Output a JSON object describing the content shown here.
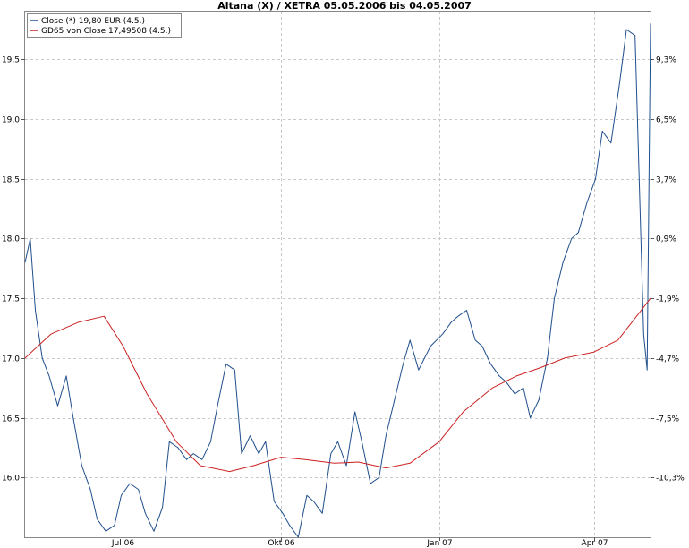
{
  "chart_data": {
    "type": "line",
    "title": "Altana (X) / XETRA 05.05.2006 bis 04.05.2007",
    "x_labels": [
      "Jul 06",
      "Okt 06",
      "Jan 07",
      "Apr 07"
    ],
    "x_label_dates": [
      "2006-07-01",
      "2006-10-01",
      "2007-01-01",
      "2007-04-01"
    ],
    "x_range": [
      "2006-05-05",
      "2007-05-04"
    ],
    "y_left_ticks": [
      "16,0",
      "16,5",
      "17,0",
      "17,5",
      "18,0",
      "18,5",
      "19,0",
      "19,5"
    ],
    "y_left_values": [
      16.0,
      16.5,
      17.0,
      17.5,
      18.0,
      18.5,
      19.0,
      19.5
    ],
    "y_right_ticks": [
      "-10,3%",
      "-7,5%",
      "-4,7%",
      "-1,9%",
      "0,9%",
      "3,7%",
      "6,5%",
      "9,3%"
    ],
    "ylim": [
      15.5,
      19.9
    ],
    "grid": true,
    "legend": {
      "placement": "top-left",
      "entries": [
        "Close (*) 19,80 EUR (4.5.)",
        "GD65 von Close 17,49508 (4.5.)"
      ]
    },
    "series": [
      {
        "name": "Close (*) 19,80 EUR (4.5.)",
        "color": "#1f4e8c",
        "x": [
          "2006-05-05",
          "2006-05-08",
          "2006-05-11",
          "2006-05-15",
          "2006-05-19",
          "2006-05-24",
          "2006-05-29",
          "2006-06-02",
          "2006-06-07",
          "2006-06-12",
          "2006-06-16",
          "2006-06-21",
          "2006-06-26",
          "2006-06-30",
          "2006-07-05",
          "2006-07-10",
          "2006-07-14",
          "2006-07-19",
          "2006-07-24",
          "2006-07-28",
          "2006-08-02",
          "2006-08-07",
          "2006-08-11",
          "2006-08-16",
          "2006-08-21",
          "2006-08-25",
          "2006-08-30",
          "2006-09-04",
          "2006-09-08",
          "2006-09-13",
          "2006-09-18",
          "2006-09-22",
          "2006-09-27",
          "2006-10-02",
          "2006-10-06",
          "2006-10-11",
          "2006-10-16",
          "2006-10-20",
          "2006-10-25",
          "2006-10-30",
          "2006-11-03",
          "2006-11-08",
          "2006-11-13",
          "2006-11-17",
          "2006-11-22",
          "2006-11-27",
          "2006-12-01",
          "2006-12-06",
          "2006-12-11",
          "2006-12-15",
          "2006-12-20",
          "2006-12-27",
          "2007-01-03",
          "2007-01-08",
          "2007-01-12",
          "2007-01-17",
          "2007-01-22",
          "2007-01-26",
          "2007-01-31",
          "2007-02-05",
          "2007-02-09",
          "2007-02-14",
          "2007-02-19",
          "2007-02-23",
          "2007-02-28",
          "2007-03-05",
          "2007-03-09",
          "2007-03-14",
          "2007-03-19",
          "2007-03-23",
          "2007-03-28",
          "2007-04-02",
          "2007-04-06",
          "2007-04-11",
          "2007-04-16",
          "2007-04-20",
          "2007-04-25",
          "2007-04-30",
          "2007-05-02",
          "2007-05-04"
        ],
        "values": [
          17.8,
          18.0,
          17.4,
          17.0,
          16.85,
          16.6,
          16.85,
          16.5,
          16.1,
          15.9,
          15.65,
          15.55,
          15.6,
          15.85,
          15.95,
          15.9,
          15.7,
          15.55,
          15.75,
          16.3,
          16.25,
          16.15,
          16.2,
          16.15,
          16.3,
          16.6,
          16.95,
          16.9,
          16.2,
          16.35,
          16.2,
          16.3,
          15.8,
          15.7,
          15.6,
          15.5,
          15.85,
          15.8,
          15.7,
          16.2,
          16.3,
          16.1,
          16.55,
          16.3,
          15.95,
          16.0,
          16.35,
          16.65,
          16.95,
          17.15,
          16.9,
          17.1,
          17.2,
          17.3,
          17.35,
          17.4,
          17.15,
          17.1,
          16.95,
          16.85,
          16.8,
          16.7,
          16.75,
          16.5,
          16.65,
          17.0,
          17.5,
          17.8,
          18.0,
          18.05,
          18.3,
          18.5,
          18.9,
          18.8,
          19.3,
          19.75,
          19.7,
          17.2,
          16.9,
          19.8
        ]
      },
      {
        "name": "GD65 von Close 17,49508 (4.5.)",
        "color": "#cc2222",
        "x": [
          "2006-05-05",
          "2006-05-20",
          "2006-06-05",
          "2006-06-20",
          "2006-07-01",
          "2006-07-15",
          "2006-08-01",
          "2006-08-15",
          "2006-09-01",
          "2006-09-15",
          "2006-10-01",
          "2006-10-15",
          "2006-11-01",
          "2006-11-15",
          "2006-12-01",
          "2006-12-15",
          "2007-01-01",
          "2007-01-15",
          "2007-02-01",
          "2007-02-15",
          "2007-03-01",
          "2007-03-15",
          "2007-04-01",
          "2007-04-15",
          "2007-05-04"
        ],
        "values": [
          17.0,
          17.2,
          17.3,
          17.35,
          17.1,
          16.7,
          16.3,
          16.1,
          16.05,
          16.1,
          16.17,
          16.15,
          16.12,
          16.13,
          16.08,
          16.12,
          16.3,
          16.55,
          16.75,
          16.85,
          16.92,
          17.0,
          17.05,
          17.15,
          17.5
        ]
      }
    ]
  }
}
